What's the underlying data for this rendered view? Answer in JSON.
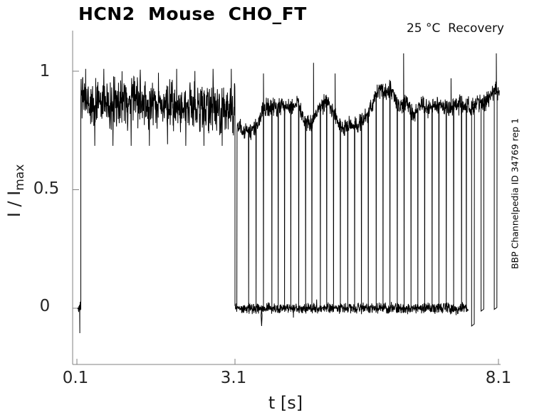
{
  "chart_data": {
    "type": "line",
    "title": "HCN2  Mouse  CHO_FT",
    "annotation": "25 °C  Recovery",
    "watermark": "BBP Channelpedia ID 34769 rep 1",
    "xlabel": "t [s]",
    "ylabel": "I / I",
    "ylabel_sub": "max",
    "xticks": [
      0.1,
      3.1,
      8.1
    ],
    "xtick_labels": [
      "0.1",
      "3.1",
      "8.1"
    ],
    "yticks": [
      1,
      0.5,
      0
    ],
    "ytick_labels": [
      "1",
      "0.5",
      "0"
    ],
    "xlim": [
      0.03,
      8.14
    ],
    "ylim": [
      -0.235,
      1.17
    ],
    "grid": false,
    "legend": null,
    "line_color": "#000000",
    "axis_color": "#808080",
    "tick_label_color": "#262626",
    "signal": {
      "description": "Normalized HCN2 current recovery trace: steady noisy plateau near I/Imax ~0.86 from t=0.1-3.1 s, instantaneous drop to 0 at 3.1 s, then a second overlaid sweep at ~0.74-0.93 with ~32 brief vertical test-pulse deflections to baseline 0 until 8.1 s",
      "samples_per_sec": 220,
      "sweep1": {
        "start_t": 0.115,
        "rise_t": 0.175,
        "drop_t": 3.1,
        "end_t": 7.53,
        "start_noise": 0.045,
        "start_spike": {
          "t": 0.155,
          "v": -0.105
        },
        "band_mean_start": 0.875,
        "band_mean_end": 0.84,
        "band_noise": 0.125,
        "band_top_clamp": 1.01,
        "band_bottom_clamp": 0.685,
        "baseline_level": 0,
        "baseline_noise": 0.027,
        "blip": {
          "t": 3.605,
          "v": -0.075
        }
      },
      "sweep2": {
        "start_t": 3.135,
        "end_t": 8.12,
        "noise": 0.046,
        "pulse_level": -0.015,
        "mean_points": [
          [
            3.15,
            0.77
          ],
          [
            3.25,
            0.745
          ],
          [
            3.4,
            0.75
          ],
          [
            3.55,
            0.78
          ],
          [
            3.62,
            0.845
          ],
          [
            3.75,
            0.85
          ],
          [
            3.9,
            0.84
          ],
          [
            4.0,
            0.86
          ],
          [
            4.1,
            0.84
          ],
          [
            4.2,
            0.86
          ],
          [
            4.3,
            0.87
          ],
          [
            4.42,
            0.79
          ],
          [
            4.55,
            0.78
          ],
          [
            4.62,
            0.82
          ],
          [
            4.72,
            0.85
          ],
          [
            4.85,
            0.875
          ],
          [
            4.95,
            0.84
          ],
          [
            5.05,
            0.79
          ],
          [
            5.15,
            0.76
          ],
          [
            5.3,
            0.78
          ],
          [
            5.42,
            0.77
          ],
          [
            5.55,
            0.8
          ],
          [
            5.68,
            0.84
          ],
          [
            5.8,
            0.92
          ],
          [
            5.95,
            0.91
          ],
          [
            6.05,
            0.93
          ],
          [
            6.15,
            0.87
          ],
          [
            6.25,
            0.85
          ],
          [
            6.35,
            0.88
          ],
          [
            6.45,
            0.82
          ],
          [
            6.55,
            0.83
          ],
          [
            6.65,
            0.86
          ],
          [
            6.78,
            0.84
          ],
          [
            6.9,
            0.85
          ],
          [
            7.0,
            0.86
          ],
          [
            7.1,
            0.84
          ],
          [
            7.25,
            0.85
          ],
          [
            7.4,
            0.86
          ],
          [
            7.55,
            0.85
          ],
          [
            7.7,
            0.87
          ],
          [
            7.85,
            0.86
          ],
          [
            7.95,
            0.9
          ],
          [
            8.05,
            0.93
          ],
          [
            8.12,
            0.88
          ]
        ],
        "pulse_times": [
          3.36,
          3.5,
          3.64,
          3.8,
          3.92,
          4.04,
          4.16,
          4.31,
          4.44,
          4.56,
          4.72,
          4.84,
          4.97,
          5.1,
          5.24,
          5.37,
          5.5,
          5.63,
          5.78,
          5.91,
          6.04,
          6.18,
          6.31,
          6.44,
          6.57,
          6.7,
          6.84,
          6.97,
          7.11,
          7.25,
          7.4,
          7.49
        ],
        "tail_pulses": [
          [
            7.59,
            -0.075
          ],
          [
            7.77,
            -0.012
          ],
          [
            8.02,
            -0.005
          ]
        ],
        "up_spikes": [
          [
            3.64,
            0.99
          ],
          [
            4.59,
            1.035
          ],
          [
            5.0,
            0.99
          ],
          [
            6.3,
            1.075
          ],
          [
            7.2,
            0.97
          ],
          [
            8.06,
            1.075
          ]
        ]
      }
    }
  }
}
